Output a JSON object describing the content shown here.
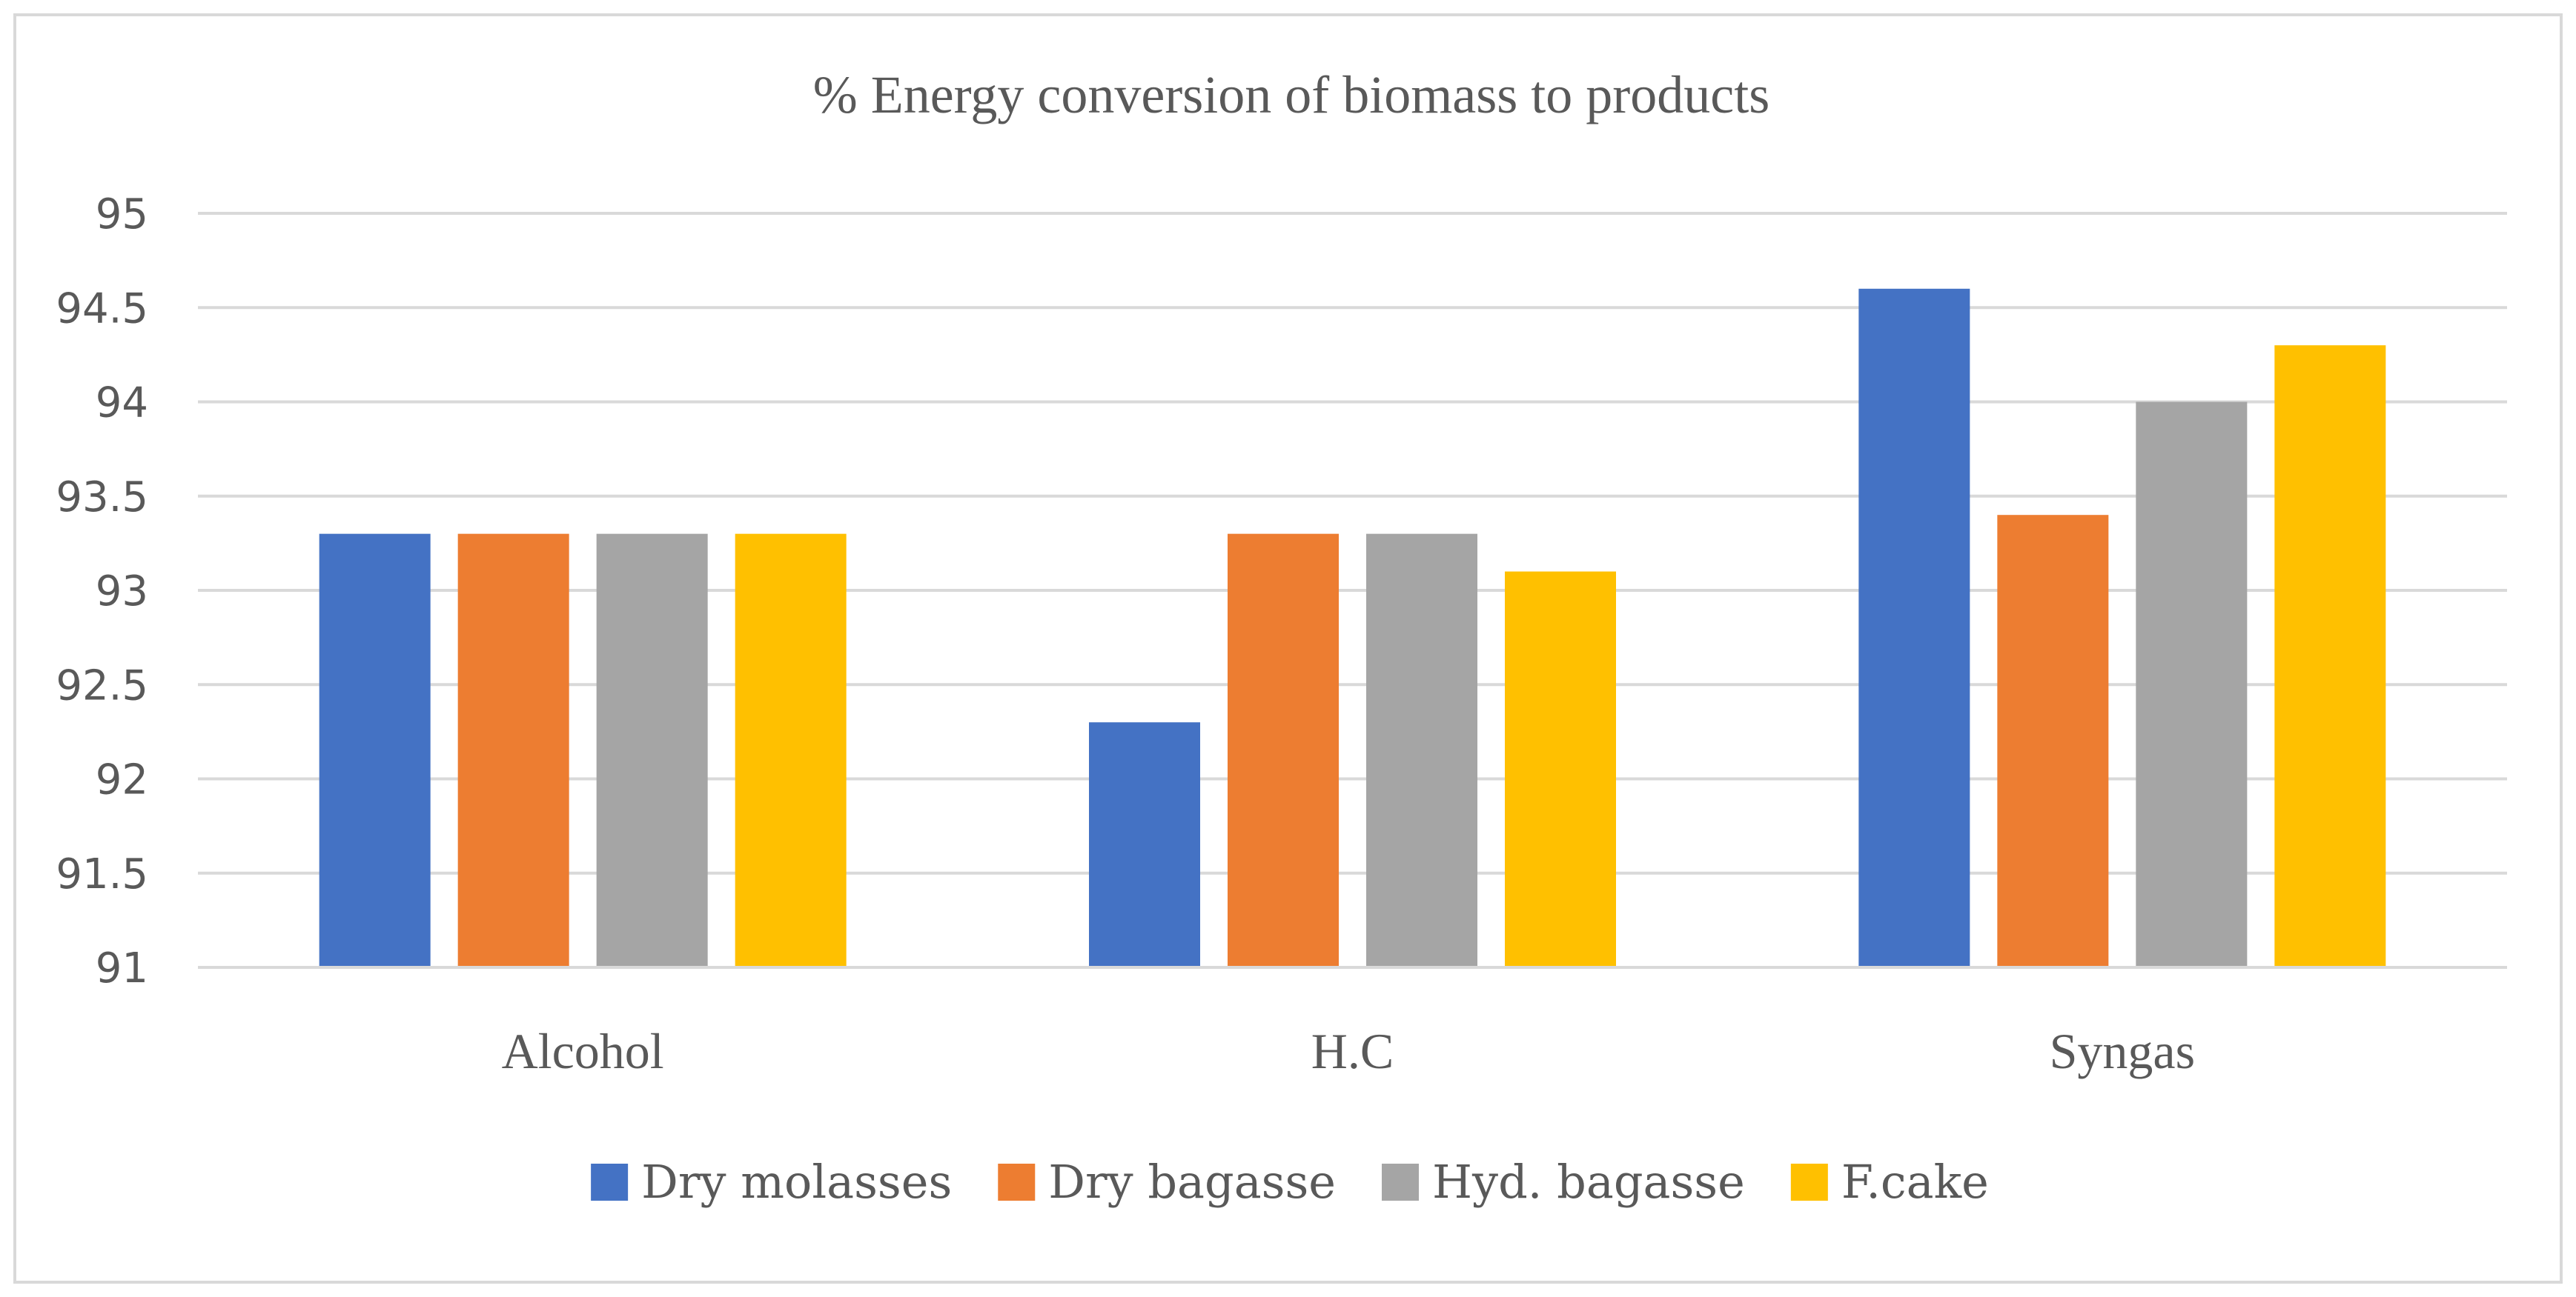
{
  "chart_data": {
    "type": "bar",
    "title": "% Energy conversion of biomass to products",
    "xlabel": "",
    "ylabel": "",
    "categories": [
      "Alcohol",
      "H.C",
      "Syngas"
    ],
    "series": [
      {
        "name": "Dry molasses",
        "color": "#4472c4",
        "values": [
          93.3,
          92.3,
          94.6
        ]
      },
      {
        "name": "Dry bagasse",
        "color": "#ed7d31",
        "values": [
          93.3,
          93.3,
          93.4
        ]
      },
      {
        "name": "Hyd. bagasse",
        "color": "#a5a5a5",
        "values": [
          93.3,
          93.3,
          94.0
        ]
      },
      {
        "name": "F.cake",
        "color": "#ffc000",
        "values": [
          93.3,
          93.1,
          94.3
        ]
      }
    ],
    "ylim": [
      91,
      95
    ],
    "yticks": [
      "91",
      "91.5",
      "92",
      "92.5",
      "93",
      "93.5",
      "94",
      "94.5",
      "95"
    ],
    "grid": true,
    "legend_position": "bottom"
  }
}
